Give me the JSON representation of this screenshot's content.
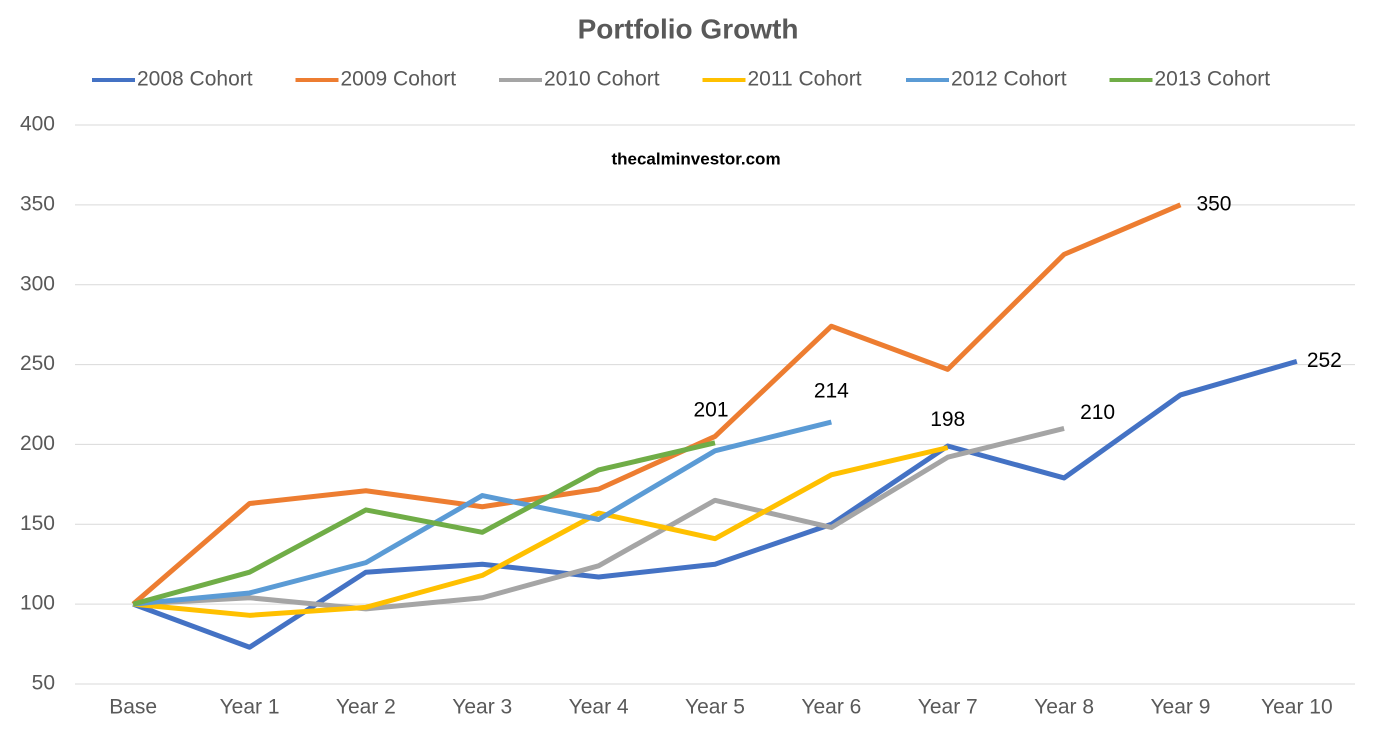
{
  "chart_data": {
    "type": "line",
    "title": "Portfolio Growth",
    "subtitle": "thecalminvestor.com",
    "categories": [
      "Base",
      "Year 1",
      "Year 2",
      "Year 3",
      "Year 4",
      "Year 5",
      "Year 6",
      "Year 7",
      "Year 8",
      "Year 9",
      "Year 10"
    ],
    "series": [
      {
        "name": "2008 Cohort",
        "color": "#4472c4",
        "values": [
          100,
          73,
          120,
          125,
          117,
          125,
          150,
          199,
          179,
          231,
          252
        ]
      },
      {
        "name": "2009 Cohort",
        "color": "#ed7d31",
        "values": [
          100,
          163,
          171,
          161,
          172,
          205,
          274,
          247,
          319,
          350,
          null
        ]
      },
      {
        "name": "2010 Cohort",
        "color": "#a5a5a5",
        "values": [
          100,
          104,
          97,
          104,
          124,
          165,
          148,
          192,
          210,
          null,
          null
        ]
      },
      {
        "name": "2011 Cohort",
        "color": "#ffc000",
        "values": [
          100,
          93,
          98,
          118,
          157,
          141,
          181,
          198,
          null,
          null,
          null
        ]
      },
      {
        "name": "2012 Cohort",
        "color": "#5b9bd5",
        "values": [
          100,
          107,
          126,
          168,
          153,
          196,
          214,
          null,
          null,
          null,
          null
        ]
      },
      {
        "name": "2013 Cohort",
        "color": "#70ad47",
        "values": [
          100,
          120,
          159,
          145,
          184,
          201,
          null,
          null,
          null,
          null,
          null
        ]
      }
    ],
    "ylim": [
      50,
      400
    ],
    "yticks": [
      50,
      100,
      150,
      200,
      250,
      300,
      350,
      400
    ],
    "grid": true,
    "legend": "top"
  }
}
